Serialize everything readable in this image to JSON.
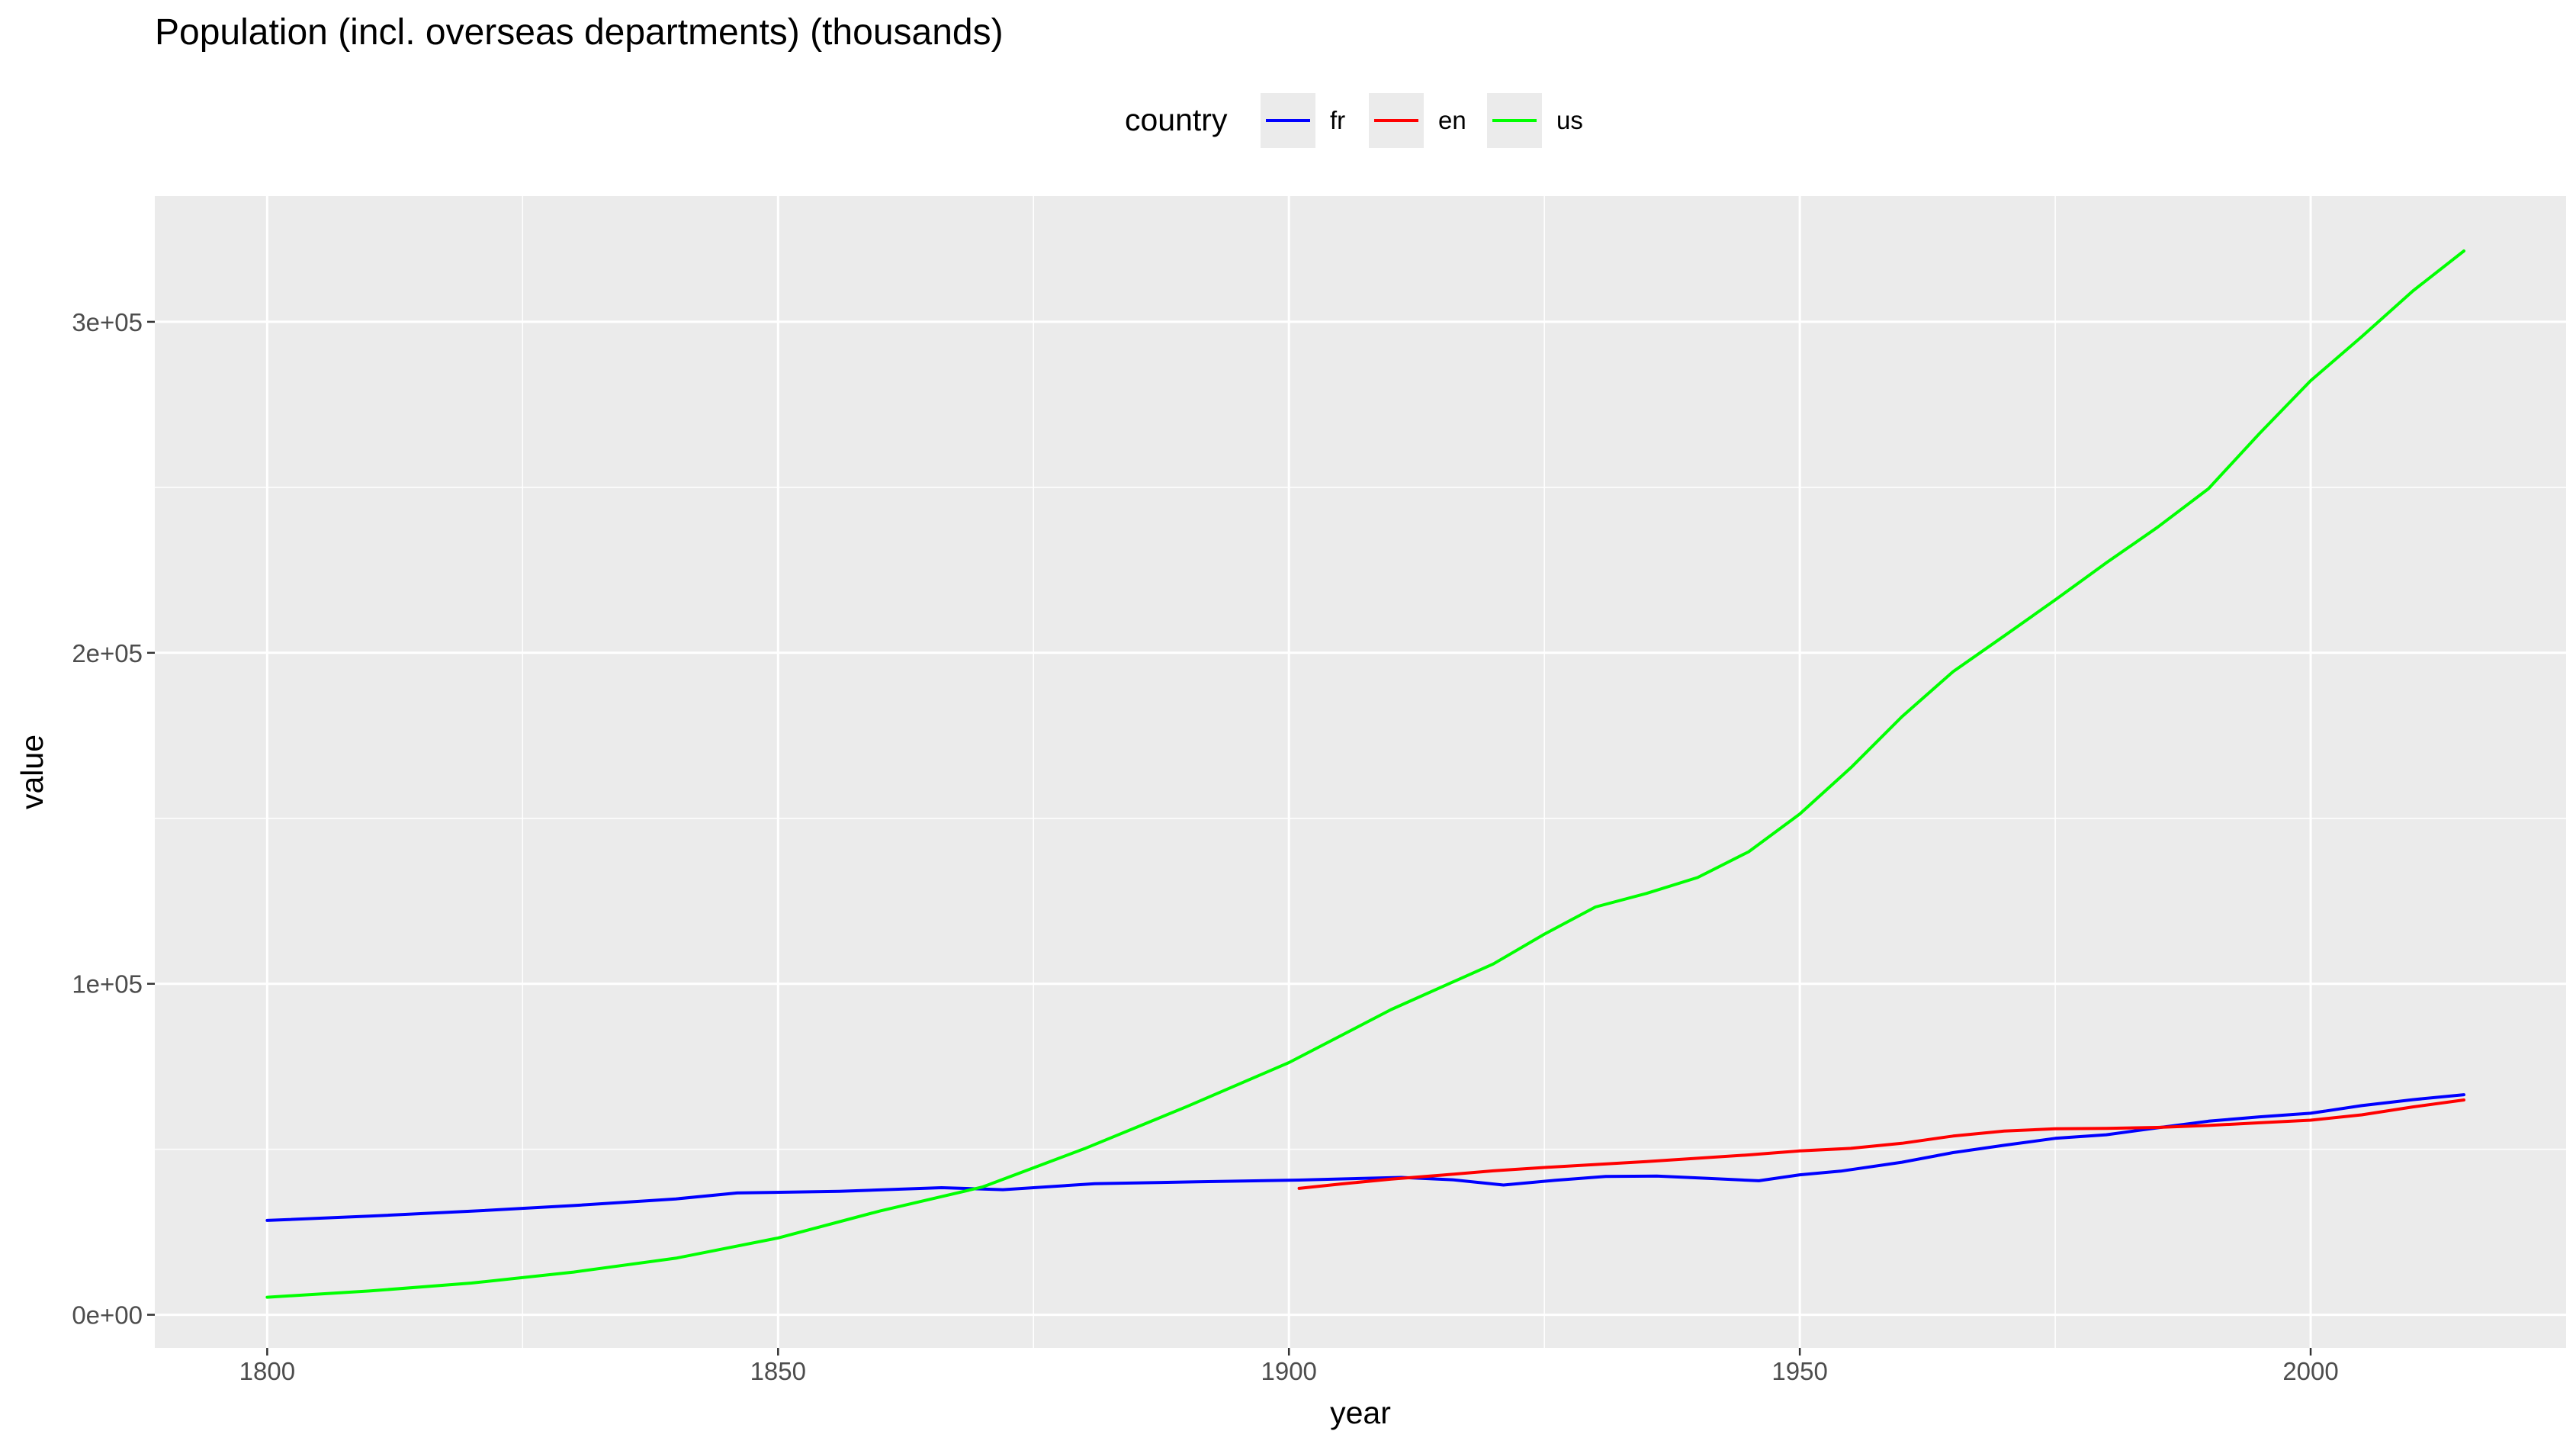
{
  "chart_data": {
    "type": "line",
    "title": "Population (incl. overseas departments) (thousands)",
    "xlabel": "year",
    "ylabel": "value",
    "xlim": [
      1789,
      2025
    ],
    "ylim": [
      -10000,
      338000
    ],
    "x_ticks": [
      1800,
      1850,
      1900,
      1950,
      2000
    ],
    "x_tick_labels": [
      "1800",
      "1850",
      "1900",
      "1950",
      "2000"
    ],
    "y_ticks": [
      0,
      100000,
      200000,
      300000
    ],
    "y_tick_labels": [
      "0e+00",
      "1e+05",
      "2e+05",
      "3e+05"
    ],
    "grid": true,
    "legend": {
      "title": "country",
      "position": "top"
    },
    "series": [
      {
        "name": "fr",
        "color": "#0000ff",
        "points": [
          [
            1800,
            28500
          ],
          [
            1810,
            29800
          ],
          [
            1820,
            31300
          ],
          [
            1830,
            33000
          ],
          [
            1840,
            35000
          ],
          [
            1846,
            36800
          ],
          [
            1856,
            37300
          ],
          [
            1866,
            38400
          ],
          [
            1872,
            37800
          ],
          [
            1881,
            39600
          ],
          [
            1891,
            40200
          ],
          [
            1901,
            40700
          ],
          [
            1911,
            41500
          ],
          [
            1916,
            40800
          ],
          [
            1921,
            39200
          ],
          [
            1926,
            40600
          ],
          [
            1931,
            41800
          ],
          [
            1936,
            41900
          ],
          [
            1941,
            41200
          ],
          [
            1946,
            40500
          ],
          [
            1950,
            42300
          ],
          [
            1954,
            43400
          ],
          [
            1960,
            46100
          ],
          [
            1965,
            49000
          ],
          [
            1970,
            51200
          ],
          [
            1975,
            53300
          ],
          [
            1980,
            54400
          ],
          [
            1985,
            56500
          ],
          [
            1990,
            58500
          ],
          [
            1995,
            59800
          ],
          [
            2000,
            60900
          ],
          [
            2005,
            63200
          ],
          [
            2010,
            65000
          ],
          [
            2015,
            66500
          ]
        ]
      },
      {
        "name": "en",
        "color": "#ff0000",
        "points": [
          [
            1901,
            38200
          ],
          [
            1905,
            39500
          ],
          [
            1910,
            41000
          ],
          [
            1915,
            42200
          ],
          [
            1920,
            43500
          ],
          [
            1925,
            44500
          ],
          [
            1930,
            45400
          ],
          [
            1935,
            46300
          ],
          [
            1940,
            47300
          ],
          [
            1945,
            48300
          ],
          [
            1950,
            49500
          ],
          [
            1955,
            50300
          ],
          [
            1960,
            51800
          ],
          [
            1965,
            54000
          ],
          [
            1970,
            55500
          ],
          [
            1975,
            56200
          ],
          [
            1980,
            56300
          ],
          [
            1985,
            56600
          ],
          [
            1990,
            57200
          ],
          [
            1995,
            58000
          ],
          [
            2000,
            58800
          ],
          [
            2005,
            60400
          ],
          [
            2010,
            62800
          ],
          [
            2015,
            64900
          ]
        ]
      },
      {
        "name": "us",
        "color": "#00ff00",
        "points": [
          [
            1800,
            5300
          ],
          [
            1810,
            7200
          ],
          [
            1820,
            9600
          ],
          [
            1830,
            12900
          ],
          [
            1840,
            17100
          ],
          [
            1850,
            23200
          ],
          [
            1860,
            31400
          ],
          [
            1870,
            38600
          ],
          [
            1880,
            50200
          ],
          [
            1890,
            62900
          ],
          [
            1900,
            76200
          ],
          [
            1910,
            92200
          ],
          [
            1920,
            106000
          ],
          [
            1925,
            115000
          ],
          [
            1930,
            123200
          ],
          [
            1935,
            127300
          ],
          [
            1940,
            132100
          ],
          [
            1945,
            139900
          ],
          [
            1950,
            151300
          ],
          [
            1955,
            165300
          ],
          [
            1960,
            180700
          ],
          [
            1965,
            194300
          ],
          [
            1970,
            205100
          ],
          [
            1975,
            216000
          ],
          [
            1980,
            227200
          ],
          [
            1985,
            237900
          ],
          [
            1990,
            249600
          ],
          [
            1995,
            266300
          ],
          [
            2000,
            282200
          ],
          [
            2005,
            295500
          ],
          [
            2010,
            309300
          ],
          [
            2015,
            321400
          ]
        ]
      }
    ]
  }
}
